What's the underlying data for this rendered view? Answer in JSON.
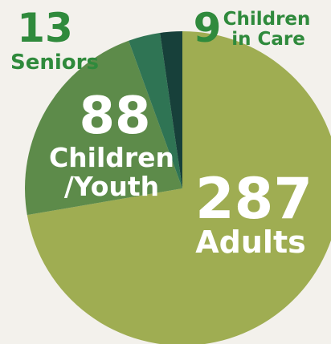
{
  "colors": {
    "background": "#f3f1ec",
    "label_green": "#2f8a3c",
    "label_white": "#ffffff"
  },
  "chart_data": {
    "type": "pie",
    "title": "",
    "slices": [
      {
        "label_lines": [
          "Adults"
        ],
        "value": 287,
        "color": "#9fad52"
      },
      {
        "label_lines": [
          "Children",
          "/Youth"
        ],
        "value": 88,
        "color": "#5d8b4a"
      },
      {
        "label_lines": [
          "Seniors"
        ],
        "value": 13,
        "color": "#2f7454"
      },
      {
        "label_lines": [
          "Children",
          "in Care"
        ],
        "value": 9,
        "color": "#17403a"
      }
    ]
  }
}
